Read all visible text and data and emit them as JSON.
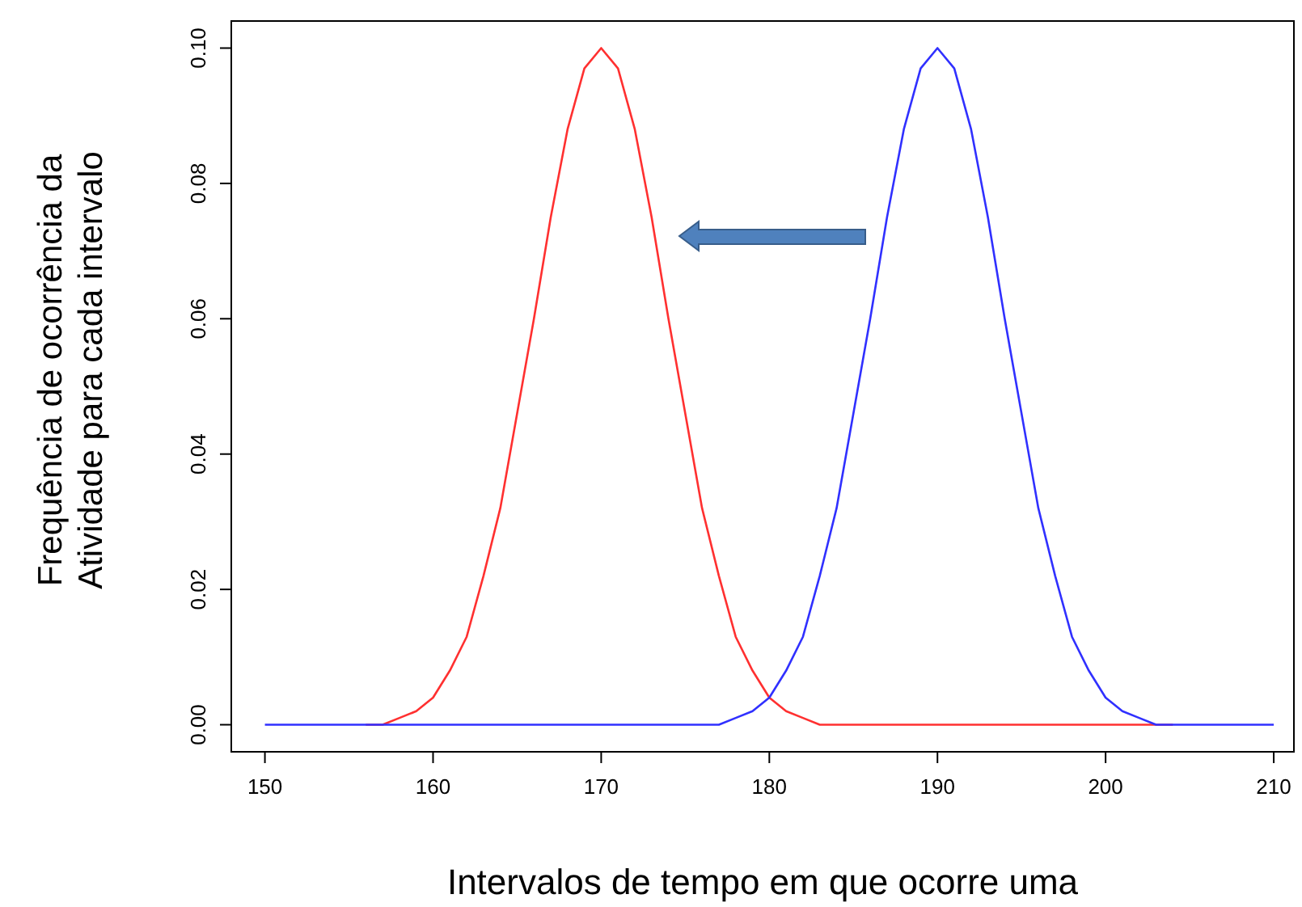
{
  "chart_data": {
    "type": "line",
    "xlabel": "Intervalos de tempo em que ocorre uma",
    "ylabel": "Frequência de ocorrência da\nAtividade para cada intervalo",
    "x": [
      150,
      151,
      152,
      153,
      154,
      155,
      156,
      157,
      158,
      159,
      160,
      161,
      162,
      163,
      164,
      165,
      166,
      167,
      168,
      169,
      170,
      171,
      172,
      173,
      174,
      175,
      176,
      177,
      178,
      179,
      180,
      181,
      182,
      183,
      184,
      185,
      186,
      187,
      188,
      189,
      190,
      191,
      192,
      193,
      194,
      195,
      196,
      197,
      198,
      199,
      200,
      201,
      202,
      203,
      204,
      205,
      206,
      207,
      208,
      209,
      210
    ],
    "series": [
      {
        "color": "#ff3030",
        "values": [
          null,
          null,
          null,
          null,
          null,
          null,
          0,
          0,
          0.001,
          0.002,
          0.004,
          0.008,
          0.013,
          0.022,
          0.032,
          0.046,
          0.06,
          0.075,
          0.088,
          0.097,
          0.1,
          0.097,
          0.088,
          0.075,
          0.06,
          0.046,
          0.032,
          0.022,
          0.013,
          0.008,
          0.004,
          0.002,
          0.001,
          0,
          0,
          0,
          0,
          0,
          0,
          0,
          0,
          0,
          0,
          0,
          0,
          0,
          0,
          0,
          0,
          0,
          0,
          0,
          0,
          0,
          0,
          null,
          null,
          null,
          null,
          null,
          null
        ]
      },
      {
        "color": "#3030ff",
        "values": [
          0,
          0,
          0,
          0,
          0,
          0,
          0,
          0,
          0,
          0,
          0,
          0,
          0,
          0,
          0,
          0,
          0,
          0,
          0,
          0,
          0,
          0,
          0,
          0,
          0,
          0,
          0,
          0,
          0.001,
          0.002,
          0.004,
          0.008,
          0.013,
          0.022,
          0.032,
          0.046,
          0.06,
          0.075,
          0.088,
          0.097,
          0.1,
          0.097,
          0.088,
          0.075,
          0.06,
          0.046,
          0.032,
          0.022,
          0.013,
          0.008,
          0.004,
          0.002,
          0.001,
          0,
          0,
          0,
          0,
          0,
          0,
          0,
          0
        ]
      }
    ],
    "xlim": [
      148,
      211.2
    ],
    "xticks": [
      150,
      160,
      170,
      180,
      190,
      200,
      210
    ],
    "ylim": [
      -0.004,
      0.104
    ],
    "yticks": [
      {
        "value": 0,
        "label": "0.00"
      },
      {
        "value": 0.02,
        "label": "0.02"
      },
      {
        "value": 0.04,
        "label": "0.04"
      },
      {
        "value": 0.06,
        "label": "0.06"
      },
      {
        "value": 0.08,
        "label": "0.08"
      },
      {
        "value": 0.1,
        "label": "0.10"
      }
    ],
    "line_style": "solid",
    "marker": "none",
    "grid": false
  }
}
